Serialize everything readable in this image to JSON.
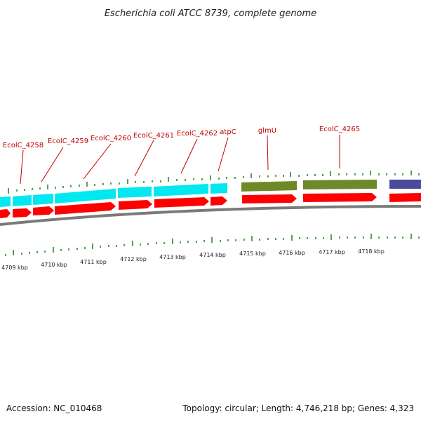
{
  "title": "Escherichia coli ATCC 8739, complete genome",
  "footer": {
    "accession": "Accession: NC_010468",
    "stats": "Topology: circular; Length: 4,746,218 bp; Genes: 4,323"
  },
  "colors": {
    "cds": "#ff0000",
    "gene_cyan": "#00e8f0",
    "gene_olive": "#6e8a28",
    "gene_navy": "#4a4a9a",
    "tick": "#2a8a2a",
    "backbone": "#808080",
    "label": "#c00000"
  },
  "gene_labels": [
    "EcolC_4258",
    "EcolC_4259",
    "EcolC_4260",
    "EcolC_4261",
    "EcolC_4262",
    "atpC",
    "glmU",
    "EcolC_4265"
  ],
  "kbp_labels": [
    "4709 kbp",
    "4710 kbp",
    "4711 kbp",
    "4712 kbp",
    "4713 kbp",
    "4714 kbp",
    "4715 kbp",
    "4716 kbp",
    "4717 kbp",
    "4718 kbp"
  ]
}
